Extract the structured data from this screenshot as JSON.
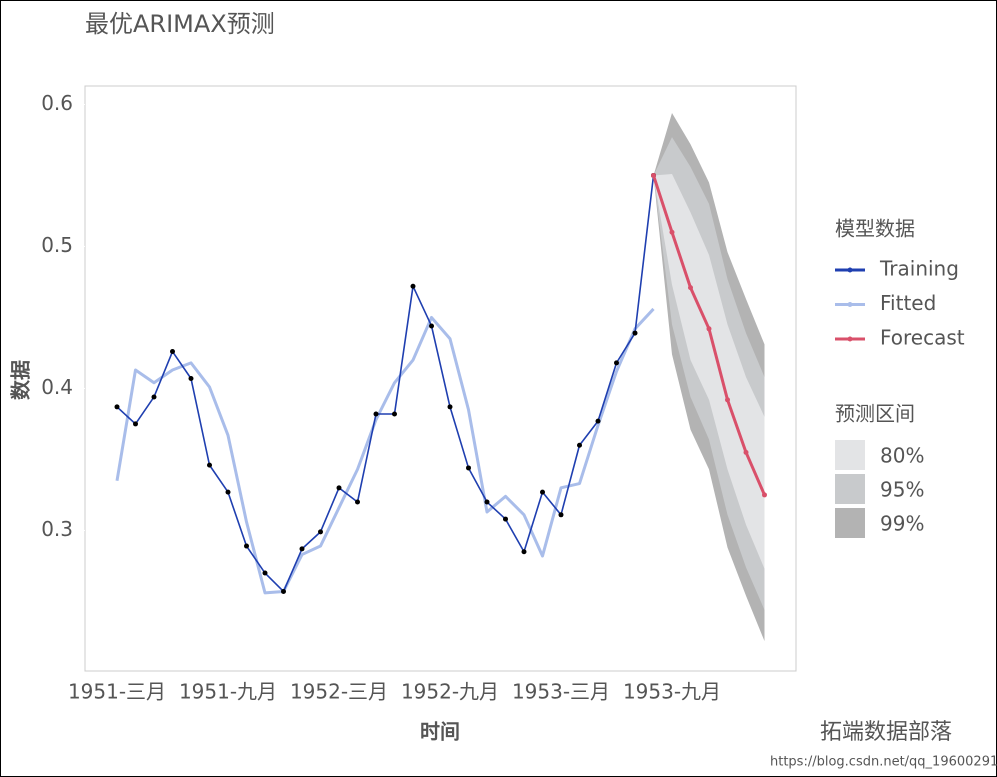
{
  "chart_data": {
    "type": "line",
    "title": "最优ARIMAX预测",
    "xlabel": "时间",
    "ylabel": "数据",
    "legend_title": "模型数据",
    "interval_legend_title": "预测区间",
    "categories": [
      "1951-三月",
      null,
      null,
      null,
      null,
      null,
      "1951-九月",
      null,
      null,
      null,
      null,
      null,
      "1952-三月",
      null,
      null,
      null,
      null,
      null,
      "1952-九月",
      null,
      null,
      null,
      null,
      null,
      "1953-三月",
      null,
      null,
      null,
      null,
      null,
      "1953-九月",
      null,
      null,
      null,
      null,
      null
    ],
    "ylim": [
      0.201,
      0.613
    ],
    "yticks": [
      0.3,
      0.4,
      0.5,
      0.6
    ],
    "series": [
      {
        "name": "Training",
        "color": "#1f3fb0",
        "values": [
          0.387,
          0.375,
          0.394,
          0.426,
          0.407,
          0.346,
          0.327,
          0.289,
          0.27,
          0.257,
          0.287,
          0.299,
          0.33,
          0.32,
          0.382,
          0.382,
          0.472,
          0.444,
          0.387,
          0.344,
          0.32,
          0.308,
          0.285,
          0.327,
          0.311,
          0.36,
          0.377,
          0.418,
          0.439,
          0.55,
          null,
          null,
          null,
          null,
          null,
          null
        ]
      },
      {
        "name": "Fitted",
        "color": "#a9bdea",
        "values": [
          0.335,
          0.413,
          0.404,
          0.413,
          0.418,
          0.401,
          0.367,
          0.306,
          0.256,
          0.257,
          0.283,
          0.289,
          0.316,
          0.343,
          0.378,
          0.404,
          0.42,
          0.45,
          0.435,
          0.385,
          0.313,
          0.324,
          0.311,
          0.282,
          0.33,
          0.333,
          0.374,
          0.412,
          0.442,
          0.456,
          null,
          null,
          null,
          null,
          null,
          null
        ]
      },
      {
        "name": "Forecast",
        "color": "#d9506a",
        "values": [
          null,
          null,
          null,
          null,
          null,
          null,
          null,
          null,
          null,
          null,
          null,
          null,
          null,
          null,
          null,
          null,
          null,
          null,
          null,
          null,
          null,
          null,
          null,
          null,
          null,
          null,
          null,
          null,
          null,
          0.55,
          0.51,
          0.471,
          0.442,
          0.392,
          0.355,
          0.325
        ]
      }
    ],
    "intervals": [
      {
        "name": "80%",
        "color": "#e3e4e6",
        "lower": [
          null,
          null,
          null,
          null,
          null,
          null,
          null,
          null,
          null,
          null,
          null,
          null,
          null,
          null,
          null,
          null,
          null,
          null,
          null,
          null,
          null,
          null,
          null,
          null,
          null,
          null,
          null,
          null,
          null,
          0.55,
          0.473,
          0.42,
          0.392,
          0.343,
          0.304,
          0.273
        ],
        "upper": [
          null,
          null,
          null,
          null,
          null,
          null,
          null,
          null,
          null,
          null,
          null,
          null,
          null,
          null,
          null,
          null,
          null,
          null,
          null,
          null,
          null,
          null,
          null,
          null,
          null,
          null,
          null,
          null,
          null,
          0.55,
          0.551,
          0.524,
          0.494,
          0.445,
          0.408,
          0.38
        ]
      },
      {
        "name": "95%",
        "color": "#c8cacc",
        "lower": [
          null,
          null,
          null,
          null,
          null,
          null,
          null,
          null,
          null,
          null,
          null,
          null,
          null,
          null,
          null,
          null,
          null,
          null,
          null,
          null,
          null,
          null,
          null,
          null,
          null,
          null,
          null,
          null,
          null,
          0.55,
          0.445,
          0.394,
          0.364,
          0.311,
          0.274,
          0.244
        ],
        "upper": [
          null,
          null,
          null,
          null,
          null,
          null,
          null,
          null,
          null,
          null,
          null,
          null,
          null,
          null,
          null,
          null,
          null,
          null,
          null,
          null,
          null,
          null,
          null,
          null,
          null,
          null,
          null,
          null,
          null,
          0.55,
          0.577,
          0.556,
          0.53,
          0.477,
          0.439,
          0.408
        ]
      },
      {
        "name": "99%",
        "color": "#b3b3b3",
        "lower": [
          null,
          null,
          null,
          null,
          null,
          null,
          null,
          null,
          null,
          null,
          null,
          null,
          null,
          null,
          null,
          null,
          null,
          null,
          null,
          null,
          null,
          null,
          null,
          null,
          null,
          null,
          null,
          null,
          null,
          0.55,
          0.424,
          0.371,
          0.343,
          0.288,
          0.254,
          0.222
        ],
        "upper": [
          null,
          null,
          null,
          null,
          null,
          null,
          null,
          null,
          null,
          null,
          null,
          null,
          null,
          null,
          null,
          null,
          null,
          null,
          null,
          null,
          null,
          null,
          null,
          null,
          null,
          null,
          null,
          null,
          null,
          0.55,
          0.594,
          0.572,
          0.545,
          0.496,
          0.463,
          0.431
        ]
      }
    ],
    "watermark": "拓端数据部落",
    "watermark_url": "https://blog.csdn.net/qq_19600291"
  }
}
